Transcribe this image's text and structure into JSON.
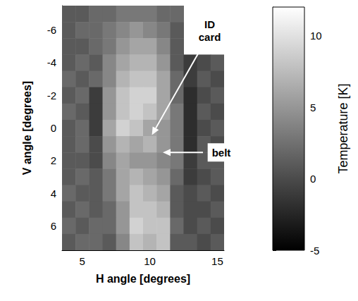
{
  "chart_data": {
    "type": "heatmap",
    "xlabel": "H angle [degrees]",
    "ylabel": "V angle [degrees]",
    "x": [
      4,
      5,
      6,
      7,
      8,
      9,
      10,
      11,
      12,
      13,
      14,
      15
    ],
    "y": [
      -7,
      -6,
      -5,
      -4,
      -3,
      -2,
      -1,
      0,
      1,
      2,
      3,
      4,
      5,
      6,
      7
    ],
    "cells": [
      [
        1,
        1,
        2,
        2,
        3,
        3,
        3,
        2,
        2,
        null,
        null,
        null
      ],
      [
        1,
        2,
        2,
        3,
        4,
        5,
        4,
        3,
        1,
        null,
        null,
        null
      ],
      [
        1,
        1,
        2,
        3,
        5,
        6,
        6,
        4,
        1,
        null,
        null,
        null
      ],
      [
        1,
        2,
        1,
        4,
        6,
        7,
        7,
        5,
        1,
        -1,
        0,
        1
      ],
      [
        2,
        1,
        2,
        4,
        7,
        8,
        8,
        6,
        2,
        -1,
        1,
        0
      ],
      [
        1,
        2,
        -1,
        5,
        8,
        9,
        9,
        6,
        2,
        -2,
        0,
        1
      ],
      [
        2,
        1,
        -1,
        5,
        8,
        9,
        8,
        6,
        3,
        -2,
        1,
        0
      ],
      [
        1,
        2,
        -1,
        6,
        9,
        8,
        6,
        5,
        3,
        -2,
        0,
        1
      ],
      [
        1,
        2,
        0,
        5,
        7,
        6,
        7,
        5,
        3,
        -2,
        1,
        0
      ],
      [
        1,
        1,
        0,
        4,
        6,
        5,
        5,
        4,
        3,
        -1,
        1,
        1
      ],
      [
        1,
        2,
        1,
        3,
        6,
        7,
        6,
        5,
        2,
        -1,
        0,
        1
      ],
      [
        2,
        1,
        1,
        3,
        6,
        8,
        7,
        6,
        1,
        0,
        1,
        0
      ],
      [
        1,
        2,
        1,
        2,
        5,
        8,
        8,
        7,
        1,
        0,
        0,
        1
      ],
      [
        2,
        1,
        2,
        2,
        5,
        9,
        8,
        8,
        2,
        0,
        1,
        0
      ],
      [
        1,
        2,
        2,
        1,
        4,
        8,
        7,
        8,
        1,
        1,
        0,
        1
      ]
    ],
    "xlim": [
      3.5,
      15.5
    ],
    "ylim": [
      -7.5,
      7.5
    ],
    "xticks": [
      5,
      10,
      15
    ],
    "yticks": [
      -6,
      -4,
      -2,
      0,
      2,
      4,
      6
    ],
    "colorbar": {
      "label": "Temperature [K]",
      "range": [
        -5,
        12
      ],
      "ticks": [
        -5,
        0,
        5,
        10
      ]
    },
    "annotations": [
      {
        "text": "ID card",
        "x": 10,
        "y": 0.3
      },
      {
        "text": "belt",
        "x": 10.7,
        "y": 1.5
      }
    ]
  }
}
